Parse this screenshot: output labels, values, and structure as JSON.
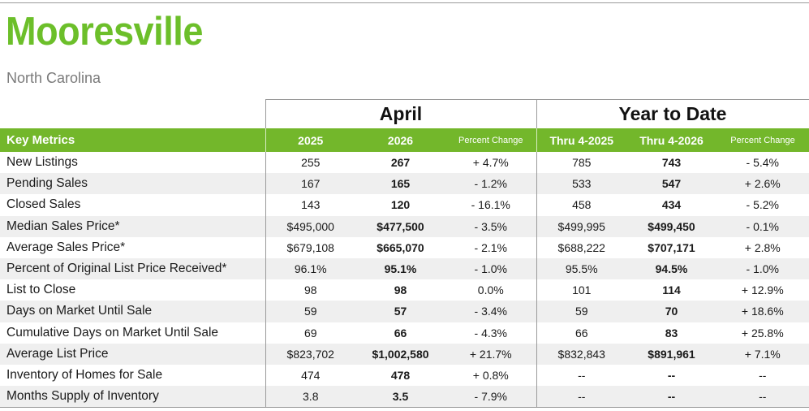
{
  "header": {
    "city": "Mooresville",
    "state": "North Carolina"
  },
  "groups": {
    "april": "April",
    "ytd": "Year to Date"
  },
  "columns": {
    "key": "Key Metrics",
    "a_prev": "2025",
    "a_curr": "2026",
    "a_pct": "Percent Change",
    "y_prev": "Thru 4-2025",
    "y_curr": "Thru 4-2026",
    "y_pct": "Percent Change"
  },
  "rows": [
    {
      "metric": "New Listings",
      "a_prev": "255",
      "a_curr": "267",
      "a_pct": "+ 4.7%",
      "y_prev": "785",
      "y_curr": "743",
      "y_pct": "- 5.4%"
    },
    {
      "metric": "Pending Sales",
      "a_prev": "167",
      "a_curr": "165",
      "a_pct": "- 1.2%",
      "y_prev": "533",
      "y_curr": "547",
      "y_pct": "+ 2.6%"
    },
    {
      "metric": "Closed Sales",
      "a_prev": "143",
      "a_curr": "120",
      "a_pct": "- 16.1%",
      "y_prev": "458",
      "y_curr": "434",
      "y_pct": "- 5.2%"
    },
    {
      "metric": "Median Sales Price*",
      "a_prev": "$495,000",
      "a_curr": "$477,500",
      "a_pct": "- 3.5%",
      "y_prev": "$499,995",
      "y_curr": "$499,450",
      "y_pct": "- 0.1%"
    },
    {
      "metric": "Average Sales Price*",
      "a_prev": "$679,108",
      "a_curr": "$665,070",
      "a_pct": "- 2.1%",
      "y_prev": "$688,222",
      "y_curr": "$707,171",
      "y_pct": "+ 2.8%"
    },
    {
      "metric": "Percent of Original List Price Received*",
      "a_prev": "96.1%",
      "a_curr": "95.1%",
      "a_pct": "- 1.0%",
      "y_prev": "95.5%",
      "y_curr": "94.5%",
      "y_pct": "- 1.0%"
    },
    {
      "metric": "List to Close",
      "a_prev": "98",
      "a_curr": "98",
      "a_pct": "0.0%",
      "y_prev": "101",
      "y_curr": "114",
      "y_pct": "+ 12.9%"
    },
    {
      "metric": "Days on Market Until Sale",
      "a_prev": "59",
      "a_curr": "57",
      "a_pct": "- 3.4%",
      "y_prev": "59",
      "y_curr": "70",
      "y_pct": "+ 18.6%"
    },
    {
      "metric": "Cumulative Days on Market Until Sale",
      "a_prev": "69",
      "a_curr": "66",
      "a_pct": "- 4.3%",
      "y_prev": "66",
      "y_curr": "83",
      "y_pct": "+ 25.8%"
    },
    {
      "metric": "Average List Price",
      "a_prev": "$823,702",
      "a_curr": "$1,002,580",
      "a_pct": "+ 21.7%",
      "y_prev": "$832,843",
      "y_curr": "$891,961",
      "y_pct": "+ 7.1%"
    },
    {
      "metric": "Inventory of Homes for Sale",
      "a_prev": "474",
      "a_curr": "478",
      "a_pct": "+ 0.8%",
      "y_prev": "--",
      "y_curr": "--",
      "y_pct": "--"
    },
    {
      "metric": "Months Supply of Inventory",
      "a_prev": "3.8",
      "a_curr": "3.5",
      "a_pct": "- 7.9%",
      "y_prev": "--",
      "y_curr": "--",
      "y_pct": "--"
    }
  ],
  "colors": {
    "accent_green": "#73b72b",
    "title_green": "#6cbf2a",
    "alt_row": "#efefef"
  }
}
